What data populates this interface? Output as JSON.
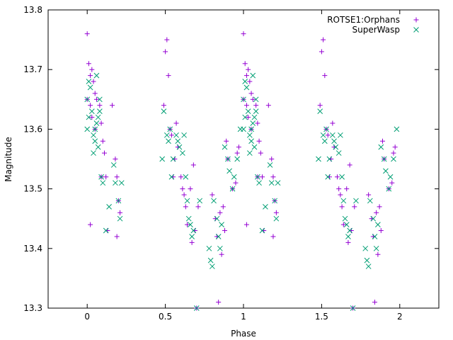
{
  "chart_data": {
    "type": "scatter",
    "xlabel": "Phase",
    "ylabel": "Magnitude",
    "xlim": [
      -0.25,
      2.25
    ],
    "ylim": [
      13.3,
      13.8
    ],
    "x_ticks": [
      0,
      0.5,
      1,
      1.5,
      2
    ],
    "x_tick_labels": [
      "0",
      "0.5",
      "1",
      "1.5",
      "2"
    ],
    "y_ticks": [
      13.3,
      13.4,
      13.5,
      13.6,
      13.7,
      13.8
    ],
    "y_tick_labels": [
      "13.3",
      "13.4",
      "13.5",
      "13.6",
      "13.7",
      "13.8"
    ],
    "grid": false,
    "legend_position": "top-right",
    "series": [
      {
        "name": "ROTSE1:Orphans",
        "marker": "plus",
        "color": "#9400d3",
        "x": [
          0.0,
          0.0,
          0.01,
          0.02,
          0.03,
          0.04,
          0.05,
          0.02,
          0.03,
          0.05,
          0.06,
          0.08,
          0.09,
          0.1,
          0.11,
          0.12,
          0.16,
          0.18,
          0.19,
          0.2,
          0.21,
          0.09,
          0.02,
          0.13,
          0.19,
          0.49,
          0.5,
          0.51,
          0.52,
          0.53,
          0.54,
          0.56,
          0.57,
          0.58,
          0.6,
          0.62,
          0.63,
          0.55,
          0.61,
          0.64,
          0.66,
          0.68,
          0.69,
          0.71,
          0.67,
          0.7,
          0.8,
          0.82,
          0.84,
          0.86,
          0.87,
          0.88,
          0.89,
          0.9,
          0.93,
          0.95,
          0.96,
          0.97,
          0.85,
          0.83
        ],
        "y": [
          13.76,
          13.65,
          13.71,
          13.69,
          13.7,
          13.68,
          13.66,
          13.64,
          13.62,
          13.6,
          13.65,
          13.64,
          13.61,
          13.58,
          13.56,
          13.52,
          13.64,
          13.55,
          13.52,
          13.48,
          13.46,
          13.52,
          13.44,
          13.43,
          13.42,
          13.64,
          13.73,
          13.75,
          13.69,
          13.6,
          13.59,
          13.55,
          13.61,
          13.57,
          13.52,
          13.49,
          13.47,
          13.52,
          13.5,
          13.44,
          13.5,
          13.54,
          13.43,
          13.47,
          13.41,
          13.3,
          13.49,
          13.45,
          13.31,
          13.39,
          13.47,
          13.43,
          13.58,
          13.55,
          13.5,
          13.51,
          13.56,
          13.57,
          13.46,
          13.42
        ]
      },
      {
        "name": "SuperWasp",
        "marker": "x",
        "color": "#009e73",
        "x": [
          0.0,
          0.0,
          0.01,
          0.01,
          0.02,
          0.03,
          0.04,
          0.05,
          0.06,
          0.07,
          0.08,
          0.09,
          0.04,
          0.05,
          0.06,
          0.07,
          0.08,
          0.1,
          0.12,
          0.14,
          0.17,
          0.18,
          0.2,
          0.21,
          0.22,
          0.48,
          0.49,
          0.51,
          0.52,
          0.53,
          0.54,
          0.55,
          0.57,
          0.58,
          0.59,
          0.61,
          0.62,
          0.63,
          0.64,
          0.65,
          0.66,
          0.67,
          0.68,
          0.7,
          0.72,
          0.78,
          0.79,
          0.8,
          0.81,
          0.83,
          0.84,
          0.85,
          0.86,
          0.88,
          0.9,
          0.91,
          0.93,
          0.94,
          0.96,
          0.98
        ],
        "y": [
          13.65,
          13.6,
          13.68,
          13.62,
          13.67,
          13.63,
          13.59,
          13.58,
          13.69,
          13.57,
          13.63,
          13.52,
          13.56,
          13.6,
          13.61,
          13.62,
          13.65,
          13.51,
          13.43,
          13.47,
          13.54,
          13.51,
          13.48,
          13.45,
          13.51,
          13.55,
          13.63,
          13.59,
          13.58,
          13.6,
          13.52,
          13.55,
          13.59,
          13.58,
          13.57,
          13.56,
          13.59,
          13.52,
          13.48,
          13.45,
          13.44,
          13.42,
          13.43,
          13.3,
          13.48,
          13.4,
          13.38,
          13.37,
          13.48,
          13.45,
          13.42,
          13.4,
          13.44,
          13.57,
          13.55,
          13.53,
          13.5,
          13.52,
          13.55,
          13.6
        ]
      }
    ]
  }
}
